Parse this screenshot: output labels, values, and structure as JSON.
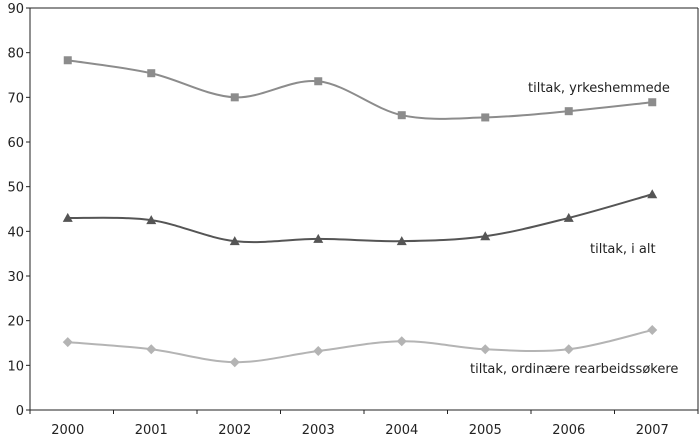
{
  "chart_data": {
    "type": "line",
    "title": "",
    "xlabel": "",
    "ylabel": "",
    "categories": [
      "2000",
      "2001",
      "2002",
      "2003",
      "2004",
      "2005",
      "2006",
      "2007"
    ],
    "ylim": [
      0,
      90
    ],
    "yticks": [
      0,
      10,
      20,
      30,
      40,
      50,
      60,
      70,
      80,
      90
    ],
    "grid": false,
    "series": [
      {
        "name": "tiltak, yrkeshemmede",
        "marker": "square",
        "color": "#8c8c8c",
        "values": [
          78.3,
          75.4,
          70.0,
          73.6,
          66.0,
          65.5,
          66.9,
          68.9
        ]
      },
      {
        "name": "tiltak, i alt",
        "marker": "triangle",
        "color": "#555555",
        "values": [
          43.0,
          42.5,
          37.8,
          38.3,
          37.8,
          38.9,
          43.0,
          48.3
        ]
      },
      {
        "name": "tiltak, ordinære rearbeidssøkere",
        "marker": "diamond",
        "color": "#b4b4b4",
        "values": [
          15.2,
          13.6,
          10.7,
          13.2,
          15.4,
          13.6,
          13.6,
          17.9
        ]
      }
    ]
  }
}
